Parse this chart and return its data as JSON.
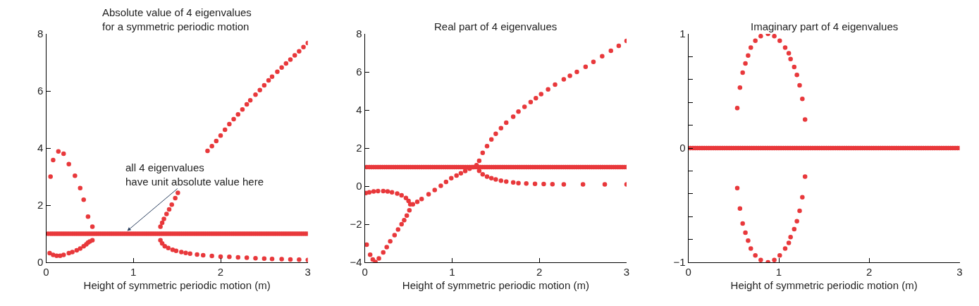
{
  "chart_data": [
    {
      "type": "scatter",
      "title": "Absolute value of 4 eigenvalues\nfor a symmetric periodic motion",
      "xlabel": "Height of symmetric periodic motion (m)",
      "xlim": [
        0,
        3
      ],
      "xticks": [
        0,
        1,
        2,
        3
      ],
      "ylim": [
        0,
        8
      ],
      "yticks": [
        0,
        2,
        4,
        6,
        8
      ],
      "marker": "circle",
      "annotations": [
        {
          "text": "all 4 eigenvalues\nhave unit absolute value here",
          "x": 0.93,
          "y": 1.1
        }
      ],
      "series": [
        {
          "color": "#e8383b",
          "x": [
            0.02,
            0.05,
            0.075,
            0.1,
            0.125,
            0.15,
            0.175,
            0.2,
            0.225,
            0.25,
            0.275,
            0.3,
            0.325,
            0.35,
            0.375,
            0.4,
            0.425,
            0.45,
            0.475,
            0.5,
            0.525,
            0.55,
            0.575,
            0.6,
            0.625,
            0.65,
            0.675,
            0.7,
            0.725,
            0.75,
            0.775,
            0.8,
            0.825,
            0.85,
            0.875,
            0.9,
            0.925,
            0.95,
            0.975,
            1.0,
            1.025,
            1.05,
            1.075,
            1.1,
            1.125,
            1.15,
            1.175,
            1.2,
            1.225,
            1.25,
            1.275,
            1.3,
            1.325,
            1.35,
            1.375,
            1.4,
            1.425,
            1.45,
            1.475,
            1.5,
            1.525,
            1.55,
            1.575,
            1.6,
            1.625,
            1.65,
            1.675,
            1.7,
            1.725,
            1.75,
            1.775,
            1.8,
            1.825,
            1.85,
            1.875,
            1.9,
            1.925,
            1.95,
            1.975,
            2.0,
            2.025,
            2.05,
            2.075,
            2.1,
            2.125,
            2.15,
            2.175,
            2.2,
            2.225,
            2.25,
            2.275,
            2.3,
            2.325,
            2.35,
            2.375,
            2.4,
            2.425,
            2.45,
            2.475,
            2.5,
            2.525,
            2.55,
            2.575,
            2.6,
            2.625,
            2.65,
            2.675,
            2.7,
            2.725,
            2.75,
            2.775,
            2.8,
            2.825,
            2.85,
            2.875,
            2.9,
            2.925,
            2.95,
            2.975,
            3.0
          ],
          "values": [
            1,
            1,
            1,
            1,
            1,
            1,
            1,
            1,
            1,
            1,
            1,
            1,
            1,
            1,
            1,
            1,
            1,
            1,
            1,
            1,
            1,
            1,
            1,
            1,
            1,
            1,
            1,
            1,
            1,
            1,
            1,
            1,
            1,
            1,
            1,
            1,
            1,
            1,
            1,
            1,
            1,
            1,
            1,
            1,
            1,
            1,
            1,
            1,
            1,
            1,
            1,
            1,
            1,
            1,
            1,
            1,
            1,
            1,
            1,
            1,
            1,
            1,
            1,
            1,
            1,
            1,
            1,
            1,
            1,
            1,
            1,
            1,
            1,
            1,
            1,
            1,
            1,
            1,
            1,
            1,
            1,
            1,
            1,
            1,
            1,
            1,
            1,
            1,
            1,
            1,
            1,
            1,
            1,
            1,
            1,
            1,
            1,
            1,
            1,
            1,
            1,
            1,
            1,
            1,
            1,
            1,
            1,
            1,
            1,
            1,
            1,
            1,
            1,
            1,
            1,
            1,
            1,
            1,
            1,
            1
          ]
        },
        {
          "color": "#e8383b",
          "x": [
            0.05,
            0.08,
            0.14,
            0.2,
            0.26,
            0.33,
            0.39,
            0.43,
            0.48,
            0.53
          ],
          "values": [
            3.0,
            3.58,
            3.88,
            3.8,
            3.44,
            3.03,
            2.6,
            2.19,
            1.6,
            1.25
          ]
        },
        {
          "color": "#e8383b",
          "x": [
            0.04,
            0.08,
            0.12,
            0.16,
            0.2,
            0.26,
            0.3,
            0.35,
            0.39,
            0.43,
            0.46,
            0.48,
            0.5,
            0.53
          ],
          "values": [
            0.32,
            0.26,
            0.23,
            0.23,
            0.26,
            0.32,
            0.36,
            0.42,
            0.48,
            0.56,
            0.63,
            0.69,
            0.73,
            0.77
          ]
        },
        {
          "color": "#e8383b",
          "x": [
            1.31,
            1.33,
            1.35,
            1.38,
            1.41,
            1.44,
            1.48,
            1.51,
            1.85,
            1.9,
            1.95,
            2.0,
            2.05,
            2.1,
            2.15,
            2.2,
            2.25,
            2.3,
            2.34,
            2.4,
            2.45,
            2.5,
            2.55,
            2.59,
            2.65,
            2.7,
            2.75,
            2.8,
            2.85,
            2.9,
            2.95,
            3.0
          ],
          "values": [
            1.25,
            1.38,
            1.52,
            1.69,
            1.85,
            2.02,
            2.25,
            2.43,
            3.9,
            4.07,
            4.25,
            4.44,
            4.64,
            4.84,
            5.01,
            5.18,
            5.35,
            5.53,
            5.67,
            5.87,
            6.03,
            6.2,
            6.37,
            6.5,
            6.67,
            6.82,
            6.96,
            7.1,
            7.25,
            7.39,
            7.54,
            7.68
          ]
        },
        {
          "color": "#e8383b",
          "x": [
            1.31,
            1.33,
            1.36,
            1.4,
            1.45,
            1.49,
            1.55,
            1.6,
            1.65,
            1.73,
            1.8,
            1.9,
            2.0,
            2.1,
            2.2,
            2.3,
            2.4,
            2.5,
            2.59,
            2.7,
            2.8,
            2.9,
            3.0
          ],
          "values": [
            0.77,
            0.66,
            0.56,
            0.5,
            0.44,
            0.4,
            0.36,
            0.33,
            0.3,
            0.27,
            0.25,
            0.22,
            0.2,
            0.19,
            0.17,
            0.16,
            0.14,
            0.13,
            0.12,
            0.11,
            0.1,
            0.09,
            0.08
          ]
        }
      ]
    },
    {
      "type": "scatter",
      "title": "Real part of 4 eigenvalues",
      "xlabel": "Height of symmetric periodic motion (m)",
      "xlim": [
        0,
        3
      ],
      "xticks": [
        0,
        1,
        2,
        3
      ],
      "ylim": [
        -4,
        8
      ],
      "yticks": [
        {
          "value": -4,
          "label": "−4"
        },
        {
          "value": -2,
          "label": "−2"
        },
        0,
        2,
        4,
        6,
        8
      ],
      "marker": "circle",
      "series": [
        {
          "color": "#e8383b",
          "x": [
            0.02,
            0.05,
            0.075,
            0.1,
            0.125,
            0.15,
            0.175,
            0.2,
            0.225,
            0.25,
            0.275,
            0.3,
            0.325,
            0.35,
            0.375,
            0.4,
            0.425,
            0.45,
            0.475,
            0.5,
            0.525,
            0.55,
            0.575,
            0.6,
            0.625,
            0.65,
            0.675,
            0.7,
            0.725,
            0.75,
            0.775,
            0.8,
            0.825,
            0.85,
            0.875,
            0.9,
            0.925,
            0.95,
            0.975,
            1.0,
            1.025,
            1.05,
            1.075,
            1.1,
            1.125,
            1.15,
            1.175,
            1.2,
            1.225,
            1.25,
            1.275,
            1.3,
            1.325,
            1.35,
            1.375,
            1.4,
            1.425,
            1.45,
            1.475,
            1.5,
            1.525,
            1.55,
            1.575,
            1.6,
            1.625,
            1.65,
            1.675,
            1.7,
            1.725,
            1.75,
            1.775,
            1.8,
            1.825,
            1.85,
            1.875,
            1.9,
            1.925,
            1.95,
            1.975,
            2.0,
            2.025,
            2.05,
            2.075,
            2.1,
            2.125,
            2.15,
            2.175,
            2.2,
            2.225,
            2.25,
            2.275,
            2.3,
            2.325,
            2.35,
            2.375,
            2.4,
            2.425,
            2.45,
            2.475,
            2.5,
            2.525,
            2.55,
            2.575,
            2.6,
            2.625,
            2.65,
            2.675,
            2.7,
            2.725,
            2.75,
            2.775,
            2.8,
            2.825,
            2.85,
            2.875,
            2.9,
            2.925,
            2.95,
            2.975,
            3.0
          ],
          "values": [
            1,
            1,
            1,
            1,
            1,
            1,
            1,
            1,
            1,
            1,
            1,
            1,
            1,
            1,
            1,
            1,
            1,
            1,
            1,
            1,
            1,
            1,
            1,
            1,
            1,
            1,
            1,
            1,
            1,
            1,
            1,
            1,
            1,
            1,
            1,
            1,
            1,
            1,
            1,
            1,
            1,
            1,
            1,
            1,
            1,
            1,
            1,
            1,
            1,
            1,
            1,
            1,
            1,
            1,
            1,
            1,
            1,
            1,
            1,
            1,
            1,
            1,
            1,
            1,
            1,
            1,
            1,
            1,
            1,
            1,
            1,
            1,
            1,
            1,
            1,
            1,
            1,
            1,
            1,
            1,
            1,
            1,
            1,
            1,
            1,
            1,
            1,
            1,
            1,
            1,
            1,
            1,
            1,
            1,
            1,
            1,
            1,
            1,
            1,
            1,
            1,
            1,
            1,
            1,
            1,
            1,
            1,
            1,
            1,
            1,
            1,
            1,
            1,
            1,
            1,
            1,
            1,
            1,
            1,
            1
          ]
        },
        {
          "color": "#e8383b",
          "x": [
            0.01,
            0.05,
            0.1,
            0.15,
            0.21,
            0.26,
            0.31,
            0.37,
            0.42,
            0.47,
            0.5,
            0.52
          ],
          "values": [
            -0.36,
            -0.32,
            -0.28,
            -0.26,
            -0.26,
            -0.28,
            -0.32,
            -0.39,
            -0.48,
            -0.62,
            -0.78,
            -0.95
          ]
        },
        {
          "color": "#e8383b",
          "x": [
            0.02,
            0.06,
            0.09,
            0.12,
            0.16,
            0.21,
            0.25,
            0.29,
            0.34,
            0.38,
            0.42,
            0.45,
            0.48,
            0.51
          ],
          "values": [
            -3.07,
            -3.6,
            -3.85,
            -3.98,
            -3.8,
            -3.48,
            -3.2,
            -2.9,
            -2.57,
            -2.28,
            -2.0,
            -1.79,
            -1.55,
            -1.27
          ]
        },
        {
          "color": "#e8383b",
          "x": [
            0.55,
            0.6,
            0.65,
            0.73,
            0.8,
            0.87,
            0.93,
            0.99,
            1.05,
            1.1,
            1.15,
            1.2,
            1.24,
            1.28,
            1.31,
            1.35,
            1.4,
            1.45,
            1.5,
            1.56,
            1.62,
            1.7,
            1.76,
            1.83,
            1.9,
            1.96,
            2.02,
            2.1,
            2.18,
            2.28,
            2.35,
            2.43,
            2.53,
            2.62,
            2.72,
            2.82,
            2.91,
            3.0
          ],
          "values": [
            -0.95,
            -0.82,
            -0.68,
            -0.43,
            -0.2,
            0.02,
            0.22,
            0.42,
            0.56,
            0.68,
            0.8,
            0.92,
            1.0,
            1.1,
            1.33,
            1.75,
            2.1,
            2.45,
            2.75,
            3.05,
            3.33,
            3.65,
            3.92,
            4.17,
            4.42,
            4.62,
            4.83,
            5.08,
            5.33,
            5.61,
            5.8,
            6.0,
            6.27,
            6.53,
            6.82,
            7.11,
            7.37,
            7.63
          ]
        },
        {
          "color": "#e8383b",
          "x": [
            1.31,
            1.35,
            1.4,
            1.45,
            1.5,
            1.56,
            1.62,
            1.7,
            1.76,
            1.85,
            1.95,
            2.05,
            2.15,
            2.28,
            2.5,
            2.75,
            3.0
          ],
          "values": [
            0.81,
            0.62,
            0.5,
            0.42,
            0.35,
            0.29,
            0.24,
            0.19,
            0.16,
            0.14,
            0.12,
            0.11,
            0.1,
            0.09,
            0.09,
            0.09,
            0.09
          ]
        }
      ]
    },
    {
      "type": "scatter",
      "title": "Imaginary part of 4 eigenvalues",
      "xlabel": "Height of symmetric periodic motion (m)",
      "xlim": [
        0,
        3
      ],
      "xticks": [
        0,
        1,
        2,
        3
      ],
      "ylim": [
        -1,
        1
      ],
      "yticks": [
        {
          "value": -1,
          "label": "−1"
        },
        {
          "value": -0.8,
          "label": null
        },
        {
          "value": -0.6,
          "label": null
        },
        {
          "value": -0.4,
          "label": null
        },
        {
          "value": -0.2,
          "label": null
        },
        0,
        {
          "value": 0.2,
          "label": null
        },
        {
          "value": 0.4,
          "label": null
        },
        {
          "value": 0.6,
          "label": null
        },
        {
          "value": 0.8,
          "label": null
        },
        1
      ],
      "marker": "circle",
      "series": [
        {
          "color": "#e8383b",
          "x": [
            0.02,
            0.05,
            0.075,
            0.1,
            0.125,
            0.15,
            0.175,
            0.2,
            0.225,
            0.25,
            0.275,
            0.3,
            0.325,
            0.35,
            0.375,
            0.4,
            0.425,
            0.45,
            0.475,
            0.5,
            0.525,
            0.55,
            0.575,
            0.6,
            0.625,
            0.65,
            0.675,
            0.7,
            0.725,
            0.75,
            0.775,
            0.8,
            0.825,
            0.85,
            0.875,
            0.9,
            0.925,
            0.95,
            0.975,
            1.0,
            1.025,
            1.05,
            1.075,
            1.1,
            1.125,
            1.15,
            1.175,
            1.2,
            1.225,
            1.25,
            1.275,
            1.3,
            1.325,
            1.35,
            1.375,
            1.4,
            1.425,
            1.45,
            1.475,
            1.5,
            1.525,
            1.55,
            1.575,
            1.6,
            1.625,
            1.65,
            1.675,
            1.7,
            1.725,
            1.75,
            1.775,
            1.8,
            1.825,
            1.85,
            1.875,
            1.9,
            1.925,
            1.95,
            1.975,
            2.0,
            2.025,
            2.05,
            2.075,
            2.1,
            2.125,
            2.15,
            2.175,
            2.2,
            2.225,
            2.25,
            2.275,
            2.3,
            2.325,
            2.35,
            2.375,
            2.4,
            2.425,
            2.45,
            2.475,
            2.5,
            2.525,
            2.55,
            2.575,
            2.6,
            2.625,
            2.65,
            2.675,
            2.7,
            2.725,
            2.75,
            2.775,
            2.8,
            2.825,
            2.85,
            2.875,
            2.9,
            2.925,
            2.95,
            2.975,
            3.0
          ],
          "values": [
            0,
            0,
            0,
            0,
            0,
            0,
            0,
            0,
            0,
            0,
            0,
            0,
            0,
            0,
            0,
            0,
            0,
            0,
            0,
            0,
            0,
            0,
            0,
            0,
            0,
            0,
            0,
            0,
            0,
            0,
            0,
            0,
            0,
            0,
            0,
            0,
            0,
            0,
            0,
            0,
            0,
            0,
            0,
            0,
            0,
            0,
            0,
            0,
            0,
            0,
            0,
            0,
            0,
            0,
            0,
            0,
            0,
            0,
            0,
            0,
            0,
            0,
            0,
            0,
            0,
            0,
            0,
            0,
            0,
            0,
            0,
            0,
            0,
            0,
            0,
            0,
            0,
            0,
            0,
            0,
            0,
            0,
            0,
            0,
            0,
            0,
            0,
            0,
            0,
            0,
            0,
            0,
            0,
            0,
            0,
            0,
            0,
            0,
            0,
            0,
            0,
            0,
            0,
            0,
            0,
            0,
            0,
            0,
            0,
            0,
            0,
            0,
            0,
            0,
            0,
            0,
            0,
            0,
            0,
            0
          ]
        },
        {
          "color": "#e8383b",
          "x": [
            0.54,
            0.57,
            0.6,
            0.63,
            0.66,
            0.69,
            0.74,
            0.8,
            0.88,
            0.95,
            1.01,
            1.07,
            1.11,
            1.13,
            1.17,
            1.2,
            1.23,
            1.26,
            1.29
          ],
          "values": [
            0.35,
            0.53,
            0.66,
            0.74,
            0.81,
            0.88,
            0.94,
            0.98,
            1.0,
            0.98,
            0.94,
            0.88,
            0.83,
            0.78,
            0.71,
            0.64,
            0.55,
            0.43,
            0.25
          ]
        },
        {
          "color": "#e8383b",
          "x": [
            0.54,
            0.57,
            0.6,
            0.63,
            0.66,
            0.69,
            0.74,
            0.8,
            0.88,
            0.95,
            1.01,
            1.07,
            1.11,
            1.13,
            1.17,
            1.2,
            1.23,
            1.26,
            1.29
          ],
          "values": [
            -0.35,
            -0.53,
            -0.66,
            -0.74,
            -0.81,
            -0.88,
            -0.94,
            -0.98,
            -1.0,
            -0.98,
            -0.94,
            -0.88,
            -0.83,
            -0.78,
            -0.71,
            -0.64,
            -0.55,
            -0.43,
            -0.25
          ]
        }
      ]
    }
  ]
}
